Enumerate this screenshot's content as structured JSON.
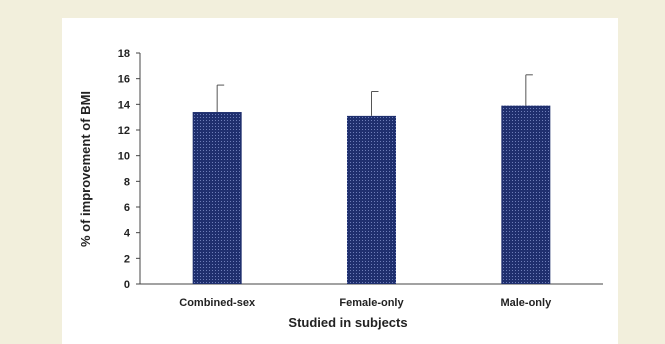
{
  "chart_data": {
    "type": "bar",
    "categories": [
      "Combined-sex",
      "Female-only",
      "Male-only"
    ],
    "values": [
      13.4,
      13.1,
      13.9
    ],
    "error_upper": [
      2.1,
      1.9,
      2.4
    ],
    "ylabel": "% of improvement of BMI",
    "xlabel": "Studied in subjects",
    "ylim": [
      0,
      18
    ],
    "yticks": [
      0,
      2,
      4,
      6,
      8,
      10,
      12,
      14,
      16,
      18
    ],
    "grid": false,
    "legend": "none",
    "colors": {
      "bar": "#1f2f6e",
      "bar_dot": "#6d7db8",
      "axis": "#444444",
      "error": "#555555"
    }
  }
}
